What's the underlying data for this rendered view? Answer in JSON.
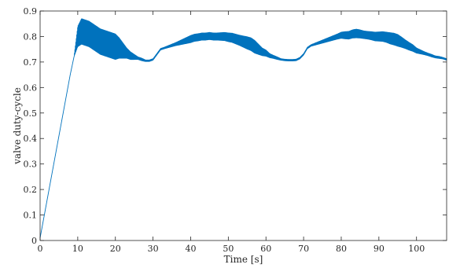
{
  "chart_data": {
    "type": "line",
    "title": "",
    "xlabel": "Time [s]",
    "ylabel": "valve duty-cycle",
    "xlim": [
      0,
      108
    ],
    "ylim": [
      0,
      0.9
    ],
    "xticks": [
      0,
      10,
      20,
      30,
      40,
      50,
      60,
      70,
      80,
      90,
      100
    ],
    "yticks": [
      0,
      0.1,
      0.2,
      0.3,
      0.4,
      0.5,
      0.6,
      0.7,
      0.8,
      0.9
    ],
    "xtick_labels": [
      "0",
      "10",
      "20",
      "30",
      "40",
      "50",
      "60",
      "70",
      "80",
      "90",
      "100"
    ],
    "ytick_labels": [
      "0",
      "0.1",
      "0.2",
      "0.3",
      "0.4",
      "0.5",
      "0.6",
      "0.7",
      "0.8",
      "0.9"
    ],
    "grid": false,
    "line_color": "#0072BD",
    "series": [
      {
        "x": [
          0,
          1,
          2,
          3,
          4,
          5,
          6,
          7,
          8,
          9,
          10,
          11,
          12,
          13,
          14,
          15,
          16,
          17,
          18,
          19,
          20,
          21,
          22,
          23,
          24,
          25,
          26,
          27,
          28,
          29,
          30,
          31,
          32,
          33,
          34,
          35,
          36,
          37,
          38,
          39,
          40,
          41,
          42,
          43,
          44,
          45,
          46,
          47,
          48,
          49,
          50,
          51,
          52,
          53,
          54,
          55,
          56,
          57,
          58,
          59,
          60,
          61,
          62,
          63,
          64,
          65,
          66,
          67,
          68,
          69,
          70,
          71,
          72,
          73,
          74,
          75,
          76,
          77,
          78,
          79,
          80,
          81,
          82,
          83,
          84,
          85,
          86,
          87,
          88,
          89,
          90,
          91,
          92,
          93,
          94,
          95,
          96,
          97,
          98,
          99,
          100,
          101,
          102,
          103,
          104,
          105,
          106,
          107,
          108
        ],
        "y": [
          0.01,
          0.09,
          0.17,
          0.25,
          0.33,
          0.41,
          0.49,
          0.57,
          0.65,
          0.72,
          0.8,
          0.82,
          0.815,
          0.81,
          0.8,
          0.79,
          0.78,
          0.775,
          0.77,
          0.765,
          0.76,
          0.755,
          0.745,
          0.735,
          0.725,
          0.72,
          0.715,
          0.71,
          0.705,
          0.705,
          0.71,
          0.73,
          0.75,
          0.755,
          0.76,
          0.765,
          0.77,
          0.775,
          0.78,
          0.785,
          0.79,
          0.795,
          0.797,
          0.8,
          0.8,
          0.802,
          0.8,
          0.8,
          0.8,
          0.8,
          0.797,
          0.795,
          0.79,
          0.785,
          0.78,
          0.775,
          0.77,
          0.76,
          0.75,
          0.74,
          0.735,
          0.725,
          0.72,
          0.715,
          0.71,
          0.708,
          0.707,
          0.707,
          0.708,
          0.715,
          0.73,
          0.755,
          0.765,
          0.77,
          0.775,
          0.78,
          0.785,
          0.79,
          0.795,
          0.8,
          0.805,
          0.805,
          0.805,
          0.81,
          0.812,
          0.81,
          0.807,
          0.805,
          0.803,
          0.8,
          0.8,
          0.8,
          0.797,
          0.793,
          0.79,
          0.785,
          0.778,
          0.77,
          0.762,
          0.755,
          0.745,
          0.74,
          0.735,
          0.73,
          0.725,
          0.72,
          0.718,
          0.715,
          0.71
        ],
        "amplitude": [
          0,
          0,
          0,
          0,
          0,
          0,
          0,
          0,
          0,
          0,
          0.04,
          0.05,
          0.05,
          0.05,
          0.05,
          0.05,
          0.05,
          0.05,
          0.05,
          0.05,
          0.05,
          0.04,
          0.03,
          0.02,
          0.015,
          0.01,
          0.005,
          0.005,
          0.003,
          0.003,
          0.003,
          0.003,
          0.003,
          0.003,
          0.004,
          0.005,
          0.006,
          0.008,
          0.01,
          0.012,
          0.014,
          0.014,
          0.014,
          0.014,
          0.014,
          0.014,
          0.014,
          0.014,
          0.015,
          0.016,
          0.017,
          0.018,
          0.019,
          0.02,
          0.022,
          0.024,
          0.025,
          0.025,
          0.02,
          0.015,
          0.012,
          0.008,
          0.006,
          0.005,
          0.003,
          0.003,
          0.003,
          0.003,
          0.003,
          0.003,
          0.003,
          0.003,
          0.003,
          0.004,
          0.005,
          0.006,
          0.007,
          0.008,
          0.009,
          0.01,
          0.012,
          0.014,
          0.015,
          0.016,
          0.017,
          0.016,
          0.015,
          0.015,
          0.016,
          0.017,
          0.018,
          0.019,
          0.02,
          0.022,
          0.023,
          0.023,
          0.02,
          0.017,
          0.015,
          0.013,
          0.01,
          0.008,
          0.006,
          0.005,
          0.005,
          0.004,
          0.004,
          0.003,
          0.003
        ]
      }
    ]
  }
}
